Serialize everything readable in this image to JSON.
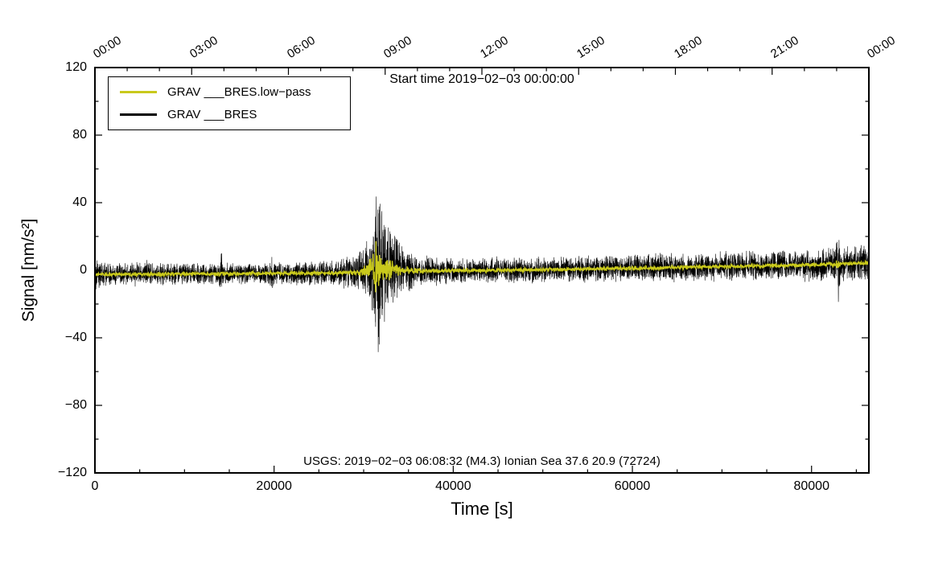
{
  "chart_data": {
    "type": "line",
    "title": "Start time 2019−02−03 00:00:00",
    "xlabel": "Time [s]",
    "ylabel": "Signal [nm/s²]",
    "annotation": "USGS: 2019−02−03 06:08:32 (M4.3) Ionian Sea 37.6 20.9 (72724)",
    "xlim": [
      0,
      86400
    ],
    "ylim": [
      -120,
      120
    ],
    "grid": false,
    "legend_position": "top-left",
    "legend": [
      {
        "label": "GRAV ___BRES.low−pass",
        "color": "#c9c91c"
      },
      {
        "label": "GRAV ___BRES",
        "color": "#000000"
      }
    ],
    "x_ticks": {
      "values": [
        0,
        20000,
        40000,
        60000,
        80000
      ],
      "labels": [
        "0",
        "20000",
        "40000",
        "60000",
        "80000"
      ],
      "minor_step": 5000
    },
    "y_ticks": {
      "values": [
        -120,
        -80,
        -40,
        0,
        40,
        80,
        120
      ],
      "labels": [
        "−120",
        "−80",
        "−40",
        "0",
        "40",
        "80",
        "120"
      ],
      "minor_step": 20
    },
    "top_axis": {
      "labels": [
        "00:00",
        "03:00",
        "06:00",
        "09:00",
        "12:00",
        "15:00",
        "18:00",
        "21:00",
        "00:00"
      ],
      "positions_s": [
        0,
        10800,
        21600,
        32400,
        43200,
        54000,
        64800,
        75600,
        86400
      ],
      "minor_step_s": 3600
    },
    "baseline": {
      "x": [
        0,
        8000,
        16000,
        24000,
        29000,
        31000,
        32500,
        36000,
        42000,
        50000,
        58000,
        66000,
        74000,
        80000,
        86400
      ],
      "y": [
        -2.5,
        -2.2,
        -2.0,
        -1.8,
        -1.5,
        0.5,
        0.3,
        -0.5,
        -0.2,
        0.3,
        1.0,
        1.8,
        2.6,
        3.2,
        4.2
      ]
    },
    "series": [
      {
        "name": "GRAV ___BRES.low−pass",
        "color": "#c9c91c",
        "render": "noise-band",
        "envelope_x": [
          0,
          28000,
          29500,
          30400,
          31000,
          31400,
          31800,
          32300,
          33000,
          34000,
          35500,
          38000,
          82500,
          83000,
          83500,
          86400
        ],
        "envelope_amp": [
          1.3,
          1.5,
          2.5,
          5,
          11,
          18,
          13,
          9,
          6,
          4,
          2,
          1.4,
          1.4,
          4,
          1.4,
          1.6
        ]
      },
      {
        "name": "GRAV ___BRES",
        "color": "#000000",
        "render": "noise-band",
        "envelope_x": [
          0,
          1500,
          8000,
          13800,
          14100,
          14400,
          19500,
          19800,
          20100,
          26000,
          28500,
          29800,
          30600,
          31000,
          31300,
          31500,
          31750,
          32100,
          32600,
          33500,
          34500,
          36000,
          40000,
          52000,
          64000,
          74000,
          80000,
          82700,
          83000,
          83300,
          86400
        ],
        "envelope_amp": [
          9,
          8,
          7,
          7,
          15,
          7,
          7,
          12,
          7,
          8,
          11,
          14,
          20,
          28,
          42,
          62,
          48,
          38,
          30,
          22,
          15,
          10,
          8,
          8,
          9,
          9.5,
          10,
          11,
          25,
          11,
          12
        ]
      }
    ],
    "event_peak_time_s": 31500,
    "event_peak_amplitude": 65
  }
}
